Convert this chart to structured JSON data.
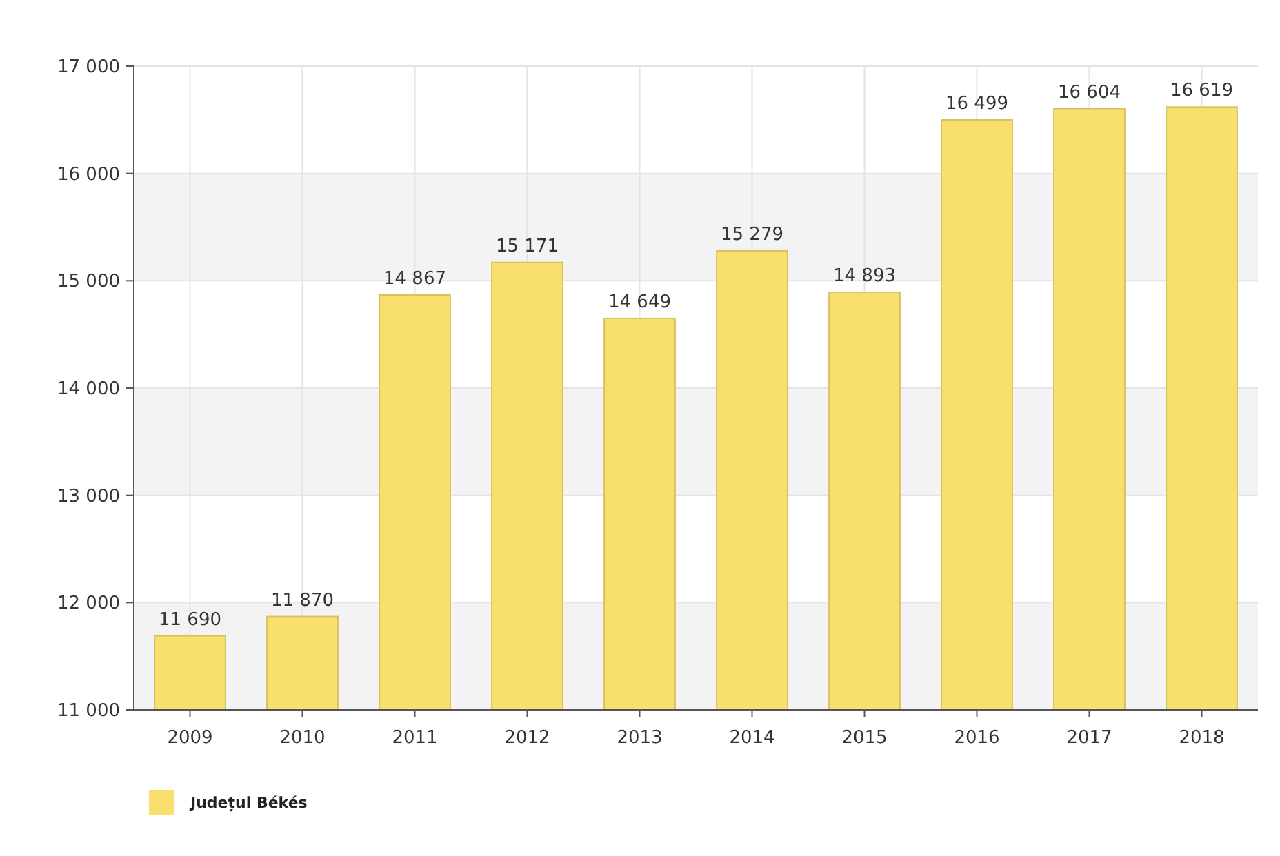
{
  "chart_data": {
    "type": "bar",
    "categories": [
      "2009",
      "2010",
      "2011",
      "2012",
      "2013",
      "2014",
      "2015",
      "2016",
      "2017",
      "2018"
    ],
    "series": [
      {
        "name": "Județul Békés",
        "color": "#f9df6e",
        "values": [
          11690,
          11870,
          14867,
          15171,
          14649,
          15279,
          14893,
          16499,
          16604,
          16619
        ]
      }
    ],
    "value_labels": [
      "11 690",
      "11 870",
      "14 867",
      "15 171",
      "14 649",
      "15 279",
      "14 893",
      "16 499",
      "16 604",
      "16 619"
    ],
    "ylim": [
      11000,
      17000
    ],
    "yticks": [
      {
        "value": 11000,
        "label": "11 000"
      },
      {
        "value": 12000,
        "label": "12 000"
      },
      {
        "value": 13000,
        "label": "13 000"
      },
      {
        "value": 14000,
        "label": "14 000"
      },
      {
        "value": 15000,
        "label": "15 000"
      },
      {
        "value": 16000,
        "label": "16 000"
      },
      {
        "value": 17000,
        "label": "17 000"
      }
    ],
    "grid": true,
    "legend": "bottom left"
  }
}
